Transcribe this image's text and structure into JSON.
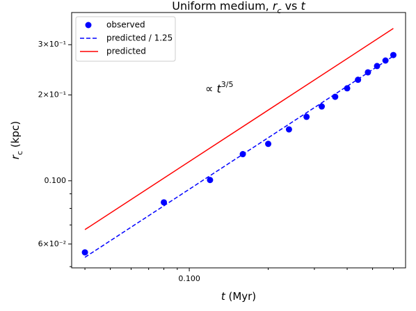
{
  "chart_data": {
    "type": "scatter",
    "title": [
      "Uniform medium, ",
      "r",
      "c",
      " vs ",
      "t"
    ],
    "xlabel": [
      "t",
      " (Myr)"
    ],
    "ylabel": [
      "r",
      "c",
      " (kpc)"
    ],
    "annotation": [
      "∝  ",
      "t",
      "3/5"
    ],
    "xlog": true,
    "ylog": true,
    "xlim": [
      0.0356,
      0.668
    ],
    "ylim": [
      0.0495,
      0.389
    ],
    "xticks": [
      {
        "value": 0.1,
        "label": "0.100"
      }
    ],
    "xminorticks": [
      0.04,
      0.05,
      0.06,
      0.07,
      0.08,
      0.09,
      0.2,
      0.3,
      0.4,
      0.5,
      0.6
    ],
    "yticks": [
      {
        "value": 0.06,
        "label": "6×10⁻²"
      },
      {
        "value": 0.1,
        "label": "0.100"
      },
      {
        "value": 0.2,
        "label": "2×10⁻¹"
      },
      {
        "value": 0.3,
        "label": "3×10⁻¹"
      }
    ],
    "yminorticks": [
      0.05,
      0.07,
      0.08,
      0.09
    ],
    "legend": "upper left",
    "series": [
      {
        "name": "observed",
        "type": "scatter",
        "color": "#0000ff",
        "x": [
          0.04,
          0.08,
          0.12,
          0.16,
          0.2,
          0.24,
          0.28,
          0.32,
          0.36,
          0.4,
          0.44,
          0.48,
          0.52,
          0.56,
          0.6
        ],
        "values": [
          0.0561,
          0.084,
          0.1006,
          0.124,
          0.1347,
          0.1514,
          0.1676,
          0.1822,
          0.197,
          0.211,
          0.226,
          0.24,
          0.2525,
          0.264,
          0.276
        ]
      },
      {
        "name": "predicted / 1.25",
        "type": "line",
        "dash": true,
        "color": "#0000ff",
        "x": [
          0.04,
          0.6
        ],
        "values": [
          0.0539,
          0.2736
        ]
      },
      {
        "name": "predicted",
        "type": "line",
        "dash": false,
        "color": "#ff0000",
        "x": [
          0.04,
          0.6
        ],
        "values": [
          0.0674,
          0.342
        ]
      }
    ]
  }
}
